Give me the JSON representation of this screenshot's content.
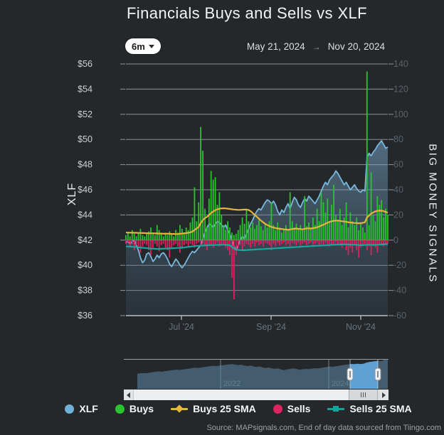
{
  "title": "Financials Buys and Sells vs XLF",
  "controls": {
    "range_label": "6m",
    "date_from": "May 21, 2024",
    "date_arrow": "→",
    "date_to": "Nov 20, 2024"
  },
  "source": "Source: MAPsignals.com, End of day data sourced from Tiingo.com",
  "legend": [
    {
      "label": "XLF",
      "marker": "circle",
      "color": "#6fb1d8"
    },
    {
      "label": "Buys",
      "marker": "circle",
      "color": "#2bc32f"
    },
    {
      "label": "Buys 25 SMA",
      "marker": "line-diamond",
      "color": "#e7b73c"
    },
    {
      "label": "Sells",
      "marker": "circle",
      "color": "#df2361"
    },
    {
      "label": "Sells 25 SMA",
      "marker": "line-square",
      "color": "#16a29b"
    }
  ],
  "chart_data": {
    "type": "combo",
    "title": "Financials Buys and Sells vs XLF",
    "x_start": "May 21, 2024",
    "x_end": "Nov 20, 2024",
    "x_tick_labels": [
      "Jul '24",
      "Sep '24",
      "Nov '24"
    ],
    "left_axis": {
      "label": "XLF",
      "min": 36,
      "max": 56,
      "tick_step": 2,
      "ticks": [
        "$56",
        "$54",
        "$52",
        "$50",
        "$48",
        "$46",
        "$44",
        "$42",
        "$40",
        "$38",
        "$36"
      ]
    },
    "right_axis": {
      "label": "BIG MONEY SIGNALS",
      "min": -60,
      "max": 140,
      "tick_step": 20,
      "ticks": [
        "140",
        "120",
        "100",
        "80",
        "60",
        "40",
        "20",
        "0",
        "-20",
        "-40",
        "-60"
      ]
    },
    "grid": true,
    "series": [
      {
        "name": "XLF",
        "type": "area",
        "axis": "left",
        "color": "#7ab7dd",
        "values": [
          41.8,
          41.9,
          41.7,
          41.9,
          42.0,
          41.6,
          41.2,
          40.6,
          40.2,
          40.4,
          40.9,
          41.0,
          40.7,
          40.3,
          40.5,
          40.8,
          40.6,
          40.9,
          41.0,
          40.8,
          40.5,
          40.1,
          39.9,
          40.2,
          40.5,
          40.3,
          40.0,
          39.8,
          40.0,
          40.3,
          40.6,
          40.9,
          41.1,
          41.0,
          41.2,
          41.4,
          41.6,
          42.1,
          42.6,
          43.0,
          43.3,
          43.2,
          43.0,
          43.3,
          43.5,
          43.4,
          43.2,
          43.0,
          43.2,
          42.8,
          42.5,
          42.0,
          41.5,
          41.2,
          41.6,
          42.0,
          42.3,
          42.1,
          42.5,
          42.9,
          43.3,
          43.6,
          44.0,
          44.3,
          44.5,
          44.4,
          44.7,
          45.0,
          45.2,
          45.1,
          44.9,
          45.1,
          44.8,
          44.3,
          44.0,
          44.4,
          44.2,
          44.6,
          44.9,
          44.5,
          45.0,
          45.4,
          45.2,
          44.8,
          44.6,
          45.0,
          45.3,
          45.1,
          45.5,
          45.3,
          45.1,
          44.9,
          45.2,
          45.5,
          45.9,
          46.3,
          46.6,
          46.4,
          46.8,
          47.0,
          47.2,
          47.5,
          47.3,
          47.0,
          46.7,
          46.4,
          46.6,
          46.3,
          46.0,
          46.2,
          46.4,
          46.1,
          45.9,
          45.8,
          46.0,
          45.9,
          48.6,
          48.9,
          48.7,
          49.0,
          49.2,
          49.5,
          49.7,
          49.9,
          49.6,
          49.3,
          49.4
        ]
      },
      {
        "name": "Buys",
        "type": "bar",
        "axis": "right",
        "color": "#28c32d",
        "values": [
          4,
          6,
          3,
          8,
          5,
          3,
          6,
          9,
          4,
          3,
          5,
          7,
          10,
          6,
          4,
          12,
          8,
          5,
          3,
          6,
          4,
          7,
          5,
          3,
          8,
          6,
          12,
          9,
          6,
          10,
          8,
          14,
          18,
          42,
          15,
          30,
          90,
          71,
          25,
          10,
          33,
          55,
          48,
          50,
          28,
          38,
          20,
          12,
          8,
          15,
          10,
          6,
          4,
          5,
          8,
          12,
          18,
          13,
          25,
          15,
          10,
          14,
          9,
          12,
          16,
          11,
          8,
          13,
          10,
          15,
          30,
          12,
          8,
          14,
          10,
          6,
          9,
          12,
          8,
          38,
          15,
          10,
          13,
          9,
          12,
          8,
          35,
          11,
          14,
          10,
          18,
          12,
          25,
          15,
          38,
          30,
          22,
          33,
          14,
          28,
          44,
          20,
          16,
          25,
          12,
          18,
          30,
          10,
          22,
          15,
          12,
          18,
          8,
          14,
          10,
          6,
          134,
          12,
          54,
          20,
          15,
          35,
          28,
          32,
          18,
          25,
          20
        ]
      },
      {
        "name": "Sells",
        "type": "bar",
        "axis": "right",
        "color": "#e02060",
        "values": [
          -3,
          -2,
          -5,
          -3,
          -8,
          -4,
          -6,
          -10,
          -5,
          -3,
          -4,
          -8,
          -12,
          -6,
          -3,
          -5,
          -9,
          -4,
          -3,
          -6,
          -8,
          -14,
          -6,
          -4,
          -3,
          -5,
          -10,
          -7,
          -4,
          -3,
          -5,
          -3,
          -4,
          -6,
          -3,
          -2,
          -4,
          -3,
          -5,
          -8,
          -3,
          -4,
          -6,
          -3,
          -2,
          -5,
          -3,
          -4,
          -6,
          -8,
          -12,
          -30,
          -47,
          -12,
          -6,
          -4,
          -8,
          -5,
          -3,
          -4,
          -6,
          -3,
          -5,
          -2,
          -4,
          -3,
          -5,
          -2,
          -3,
          -4,
          -8,
          -3,
          -5,
          -2,
          -4,
          -3,
          -2,
          -4,
          -3,
          -5,
          -2,
          -3,
          -4,
          -2,
          -5,
          -3,
          -2,
          -4,
          -3,
          -2,
          -4,
          -3,
          -2,
          -5,
          -3,
          -4,
          -2,
          -3,
          -5,
          -4,
          -3,
          -2,
          -4,
          -3,
          -6,
          -4,
          -8,
          -12,
          -6,
          -10,
          -4,
          -8,
          -14,
          -6,
          -4,
          -3,
          -8,
          -5,
          -12,
          -4,
          -6,
          -10,
          -4,
          -3,
          -5,
          -4,
          -3
        ]
      },
      {
        "name": "Buys 25 SMA",
        "type": "line",
        "axis": "right",
        "color": "#e6b33c",
        "values": [
          6.0,
          6.0,
          5.9,
          5.9,
          5.8,
          5.8,
          5.7,
          5.7,
          5.6,
          5.6,
          5.5,
          5.5,
          5.4,
          5.4,
          5.3,
          5.3,
          5.2,
          5.2,
          5.1,
          5.1,
          5.0,
          5.0,
          4.9,
          4.9,
          4.8,
          4.8,
          5.0,
          5.2,
          5.4,
          5.6,
          5.8,
          6.2,
          6.8,
          8.0,
          9.2,
          10.5,
          13.5,
          16.0,
          17.5,
          18.5,
          20.0,
          21.5,
          22.8,
          23.8,
          24.5,
          25.0,
          25.2,
          25.3,
          25.2,
          25.0,
          24.8,
          24.5,
          24.3,
          24.2,
          24.0,
          24.0,
          24.2,
          24.3,
          24.2,
          24.0,
          23.0,
          21.5,
          20.0,
          18.5,
          17.0,
          15.5,
          14.2,
          13.0,
          12.0,
          11.2,
          10.5,
          10.0,
          9.5,
          9.2,
          9.0,
          8.8,
          8.6,
          8.4,
          8.2,
          8.5,
          8.8,
          9.0,
          9.2,
          9.0,
          8.8,
          8.6,
          9.0,
          9.2,
          9.4,
          9.2,
          9.5,
          9.8,
          10.2,
          10.8,
          11.5,
          12.2,
          13.0,
          13.8,
          14.5,
          15.0,
          15.3,
          15.5,
          15.5,
          15.3,
          15.0,
          14.8,
          14.5,
          14.2,
          14.0,
          13.8,
          13.6,
          13.5,
          13.4,
          13.5,
          13.8,
          14.2,
          18.0,
          19.5,
          21.0,
          22.0,
          22.8,
          23.2,
          23.4,
          23.4,
          23.0,
          22.4,
          21.8
        ]
      },
      {
        "name": "Sells 25 SMA",
        "type": "line",
        "axis": "right",
        "color": "#17a89e",
        "values": [
          -5.0,
          -5.1,
          -5.2,
          -5.3,
          -5.4,
          -5.5,
          -5.7,
          -5.9,
          -6.1,
          -6.2,
          -6.4,
          -6.5,
          -6.7,
          -6.8,
          -6.9,
          -7.0,
          -7.0,
          -6.9,
          -6.8,
          -6.7,
          -6.6,
          -6.6,
          -6.5,
          -6.4,
          -6.3,
          -6.2,
          -6.1,
          -6.0,
          -5.8,
          -5.6,
          -5.4,
          -5.2,
          -5.0,
          -4.8,
          -4.6,
          -4.5,
          -4.4,
          -4.3,
          -4.2,
          -4.1,
          -4.0,
          -4.0,
          -3.9,
          -3.9,
          -3.8,
          -3.8,
          -3.7,
          -3.7,
          -3.8,
          -3.9,
          -4.2,
          -5.2,
          -6.8,
          -7.6,
          -7.8,
          -7.9,
          -8.0,
          -8.0,
          -7.9,
          -7.8,
          -7.7,
          -7.6,
          -7.5,
          -7.4,
          -7.3,
          -7.2,
          -7.1,
          -7.0,
          -6.9,
          -6.8,
          -6.7,
          -6.6,
          -6.5,
          -6.4,
          -6.3,
          -6.2,
          -6.1,
          -6.0,
          -5.9,
          -5.8,
          -5.7,
          -5.6,
          -5.5,
          -5.4,
          -5.3,
          -5.2,
          -5.1,
          -5.0,
          -4.9,
          -4.8,
          -4.7,
          -4.6,
          -4.5,
          -4.4,
          -4.3,
          -4.2,
          -4.1,
          -4.0,
          -3.9,
          -3.8,
          -3.7,
          -3.6,
          -3.6,
          -3.5,
          -3.5,
          -3.4,
          -3.4,
          -3.5,
          -3.6,
          -3.7,
          -3.7,
          -3.8,
          -3.9,
          -4.0,
          -4.0,
          -3.9,
          -3.8,
          -3.7,
          -3.8,
          -3.9,
          -3.8,
          -3.7,
          -3.6,
          -3.5,
          -3.4,
          -3.3,
          -3.2
        ]
      }
    ],
    "navigator": {
      "description": "XLF full history mini chart",
      "year_labels": [
        "2022",
        "2024"
      ],
      "selected_range": [
        "May 21, 2024",
        "Nov 20, 2024"
      ],
      "values": [
        25.0,
        25.8,
        26.4,
        26.0,
        27.0,
        27.8,
        28.4,
        29.0,
        28.4,
        29.4,
        30.0,
        30.8,
        31.4,
        32.0,
        31.4,
        32.4,
        33.0,
        33.8,
        34.6,
        35.2,
        34.6,
        35.6,
        36.4,
        37.0,
        37.8,
        38.4,
        37.8,
        38.8,
        39.4,
        40.0,
        40.8,
        41.2,
        40.4,
        39.4,
        40.2,
        38.8,
        38.0,
        38.8,
        37.4,
        36.4,
        37.2,
        35.6,
        34.6,
        35.6,
        34.2,
        33.2,
        34.2,
        32.4,
        31.2,
        32.2,
        33.2,
        34.2,
        33.6,
        31.6,
        32.6,
        33.2,
        32.8,
        33.6,
        34.4,
        34.0,
        34.8,
        35.6,
        36.4,
        37.2,
        36.8,
        37.6,
        38.4,
        39.2,
        40.0,
        40.8,
        41.4,
        41.0,
        41.8,
        41.2,
        41.9,
        43.5,
        44.8,
        45.4,
        46.2,
        46.6,
        46.1,
        48.9,
        49.8
      ]
    }
  }
}
